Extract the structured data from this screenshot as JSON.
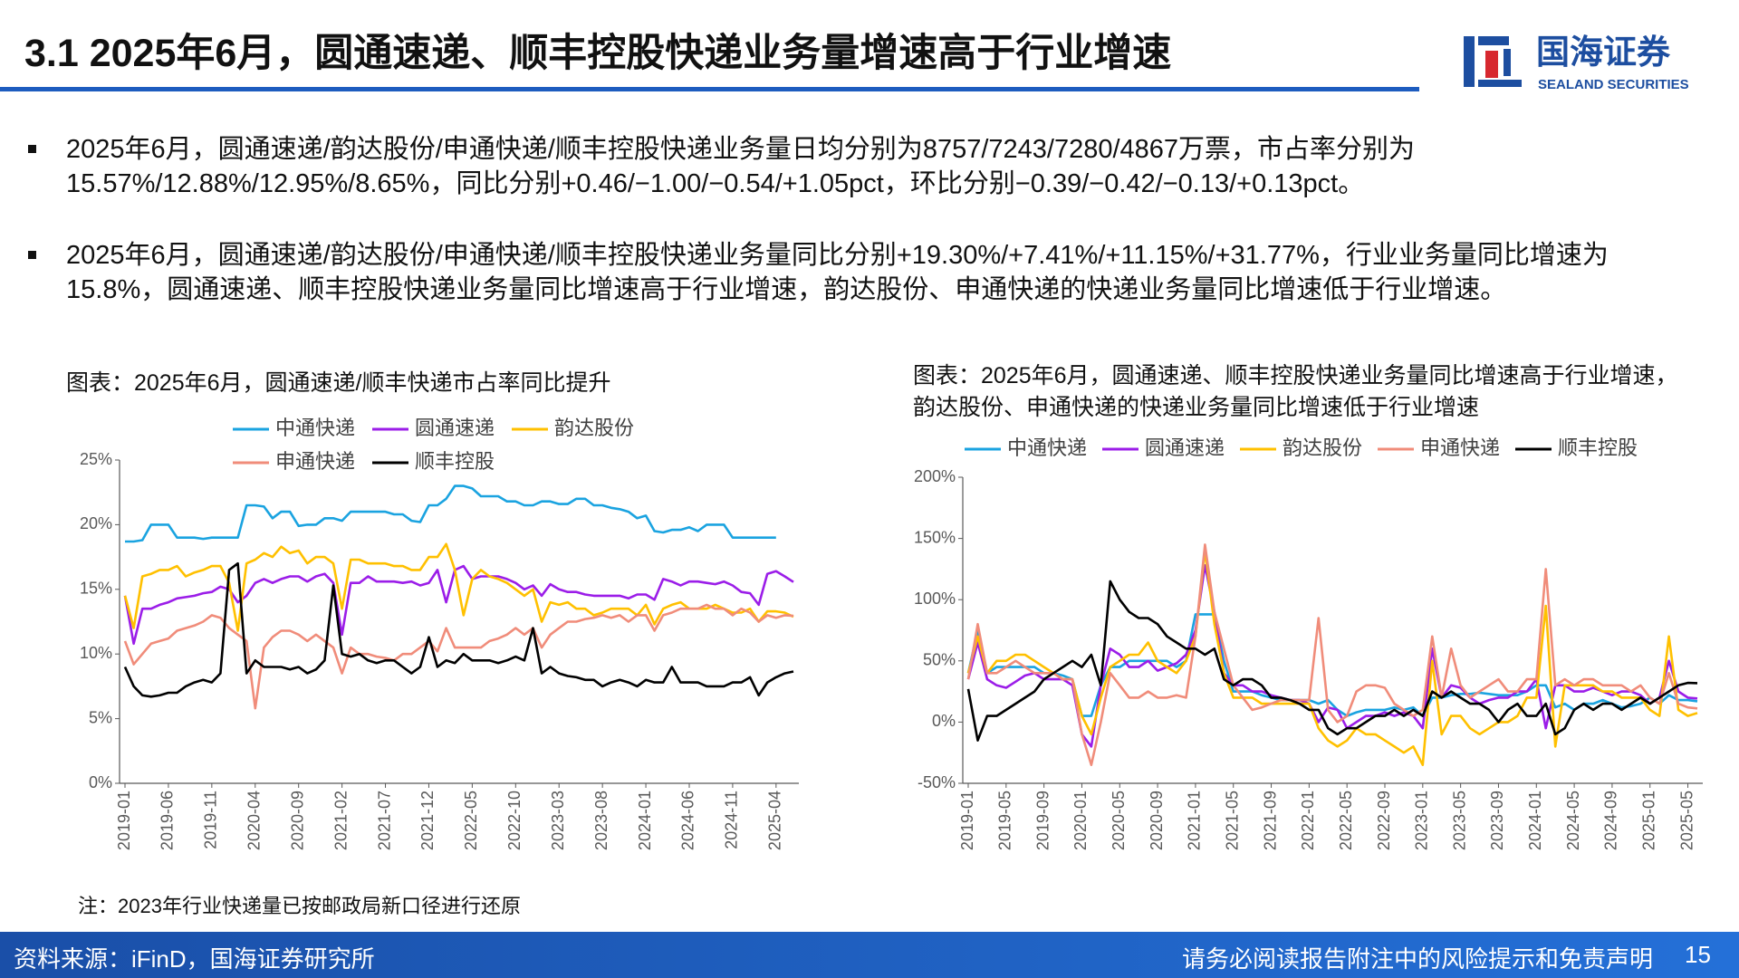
{
  "header": {
    "title": "3.1 2025年6月，圆通速递、顺丰控股快递业务量增速高于行业增速",
    "logo_cn": "国海证券",
    "logo_en": "SEALAND SECURITIES"
  },
  "bullets": [
    "2025年6月，圆通速递/韵达股份/申通快递/顺丰控股快递业务量日均分别为8757/7243/7280/4867万票，市占率分别为15.57%/12.88%/12.95%/8.65%，同比分别+0.46/−1.00/−0.54/+1.05pct，环比分别−0.39/−0.42/−0.13/+0.13pct。",
    "2025年6月，圆通速递/韵达股份/申通快递/顺丰控股快递业务量同比分别+19.30%/+7.41%/+11.15%/+31.77%，行业业务量同比增速为15.8%，圆通速递、顺丰控股快递业务量同比增速高于行业增速，韵达股份、申通快递的快递业务量同比增速低于行业增速。"
  ],
  "chart_data": [
    {
      "type": "line",
      "title": "图表：2025年6月，圆通速递/顺丰快递市占率同比提升",
      "note": "注：2023年行业快递量已按邮政局新口径进行还原",
      "categories": [
        "2019-01",
        null,
        null,
        null,
        null,
        "2019-06",
        null,
        null,
        null,
        null,
        "2019-11",
        null,
        null,
        null,
        null,
        "2020-04",
        null,
        null,
        null,
        null,
        "2020-09",
        null,
        null,
        null,
        null,
        "2021-02",
        null,
        null,
        null,
        null,
        "2021-07",
        null,
        null,
        null,
        null,
        "2021-12",
        null,
        null,
        null,
        null,
        "2022-05",
        null,
        null,
        null,
        null,
        "2022-10",
        null,
        null,
        null,
        null,
        "2023-03",
        null,
        null,
        null,
        null,
        "2023-08",
        null,
        null,
        null,
        null,
        "2024-01",
        null,
        null,
        null,
        null,
        "2024-06",
        null,
        null,
        null,
        null,
        "2024-11",
        null,
        null,
        null,
        null,
        "2025-04",
        null,
        null
      ],
      "ylim": [
        0,
        25
      ],
      "yticks": [
        {
          "value": 0,
          "label": "0%"
        },
        {
          "value": 5,
          "label": "5%"
        },
        {
          "value": 10,
          "label": "10%"
        },
        {
          "value": 15,
          "label": "15%"
        },
        {
          "value": 20,
          "label": "20%"
        },
        {
          "value": 25,
          "label": "25%"
        }
      ],
      "series": [
        {
          "name": "中通快递",
          "color": "#1aa3e0",
          "values": [
            18.7,
            18.7,
            18.8,
            20,
            20,
            20,
            19,
            19,
            19,
            18.9,
            19,
            19,
            19,
            19,
            21.5,
            21.5,
            21.4,
            20.5,
            21,
            21,
            19.9,
            20,
            20,
            20.5,
            20.5,
            20.3,
            21,
            21,
            21,
            21,
            21,
            20.8,
            20.8,
            20.3,
            20.2,
            21.5,
            21.5,
            22,
            23,
            23,
            22.8,
            22.2,
            22.2,
            22.2,
            21.8,
            21.8,
            21.5,
            21.5,
            21.8,
            21.8,
            21.6,
            21.6,
            22,
            22,
            21.5,
            21.5,
            21.3,
            21.2,
            21,
            20.5,
            20.7,
            19.5,
            19.4,
            19.6,
            19.6,
            19.8,
            19.5,
            20,
            20,
            20,
            19,
            19,
            19,
            19,
            19,
            19,
            null,
            null
          ]
        },
        {
          "name": "圆通速递",
          "color": "#9b1de8",
          "values": [
            14.5,
            10.8,
            13.5,
            13.5,
            13.8,
            14,
            14.3,
            14.4,
            14.5,
            14.7,
            14.8,
            15.2,
            15,
            14,
            14.5,
            15.5,
            15.8,
            15.5,
            15.8,
            16,
            16,
            15.6,
            16,
            16.2,
            15.5,
            11.5,
            15.5,
            15.5,
            16,
            15.6,
            15.6,
            15.6,
            15.5,
            15.6,
            15.3,
            15.5,
            16.5,
            14,
            16.5,
            16.8,
            15.8,
            16,
            16,
            16,
            15.8,
            15.5,
            15,
            15.3,
            14.5,
            15.4,
            15,
            14.8,
            14.8,
            14.6,
            14.5,
            14.5,
            14.5,
            14.5,
            14.3,
            14.6,
            14.6,
            14.2,
            15.8,
            15.6,
            15.3,
            15.6,
            15.6,
            15.5,
            15.4,
            15.6,
            15.3,
            14.8,
            14.7,
            13.8,
            16.2,
            16.4,
            16,
            15.57
          ]
        },
        {
          "name": "韵达股份",
          "color": "#ffc000",
          "values": [
            14.5,
            12,
            16,
            16.2,
            16.5,
            16.5,
            16.8,
            16,
            16.3,
            16.5,
            16.8,
            16.8,
            15.5,
            11.8,
            17,
            17.3,
            17.8,
            17.5,
            18.3,
            17.8,
            18,
            17,
            17.5,
            17.5,
            17,
            13.5,
            17.3,
            17.3,
            17,
            17,
            17,
            16.8,
            16.8,
            16.5,
            16.5,
            17.5,
            17.5,
            18.5,
            16.5,
            13,
            15.8,
            16.5,
            16,
            15.8,
            15.5,
            15,
            14.5,
            15,
            12.5,
            14,
            13.8,
            14,
            13.5,
            13.5,
            13,
            13.2,
            13.5,
            13.5,
            13.5,
            13,
            13.8,
            12.3,
            13.5,
            13.8,
            14,
            13.5,
            13.5,
            13.5,
            13.8,
            13.5,
            13.2,
            13.2,
            13.5,
            12.5,
            13.3,
            13.3,
            13.2,
            12.88
          ]
        },
        {
          "name": "申通快递",
          "color": "#f08c7a",
          "values": [
            11,
            9.2,
            10,
            10.8,
            11,
            11.2,
            11.8,
            12,
            12.2,
            12.5,
            13,
            12.8,
            12,
            11.5,
            11,
            5.8,
            10.5,
            11.3,
            11.8,
            11.8,
            11.5,
            11,
            11.5,
            11,
            10.5,
            8.5,
            10.5,
            10,
            10,
            9.8,
            9.7,
            9.5,
            10,
            10,
            10.5,
            11,
            10.2,
            12,
            10.5,
            10.5,
            10.5,
            10.5,
            11,
            11.2,
            11.5,
            12,
            11.5,
            12,
            10.5,
            11.5,
            12,
            12.5,
            12.5,
            12.7,
            12.8,
            13,
            12.8,
            13,
            12.5,
            13,
            13,
            11.8,
            13,
            13.2,
            13.5,
            13.5,
            13.5,
            13.8,
            13.5,
            13.5,
            13,
            13.5,
            13.2,
            12.5,
            13,
            12.8,
            13,
            12.95
          ]
        },
        {
          "name": "顺丰控股",
          "color": "#000000",
          "values": [
            9,
            7.5,
            6.8,
            6.7,
            6.8,
            7,
            7,
            7.5,
            7.8,
            8,
            7.8,
            8.5,
            16.5,
            17,
            8.5,
            9.5,
            9,
            9,
            9,
            8.8,
            9,
            8.5,
            8.8,
            9.5,
            15.3,
            10,
            9.8,
            10,
            9.5,
            9.3,
            9.5,
            9.5,
            9,
            8.5,
            9,
            11.3,
            9,
            9.5,
            9.3,
            10,
            9.5,
            9.5,
            9.5,
            9.3,
            9.5,
            9.8,
            9.5,
            12,
            8.5,
            9,
            8.5,
            8.3,
            8.2,
            8,
            8,
            7.5,
            7.8,
            8,
            7.8,
            7.5,
            8,
            7.8,
            7.8,
            9,
            7.8,
            7.8,
            7.8,
            7.5,
            7.5,
            7.5,
            7.8,
            7.8,
            8.2,
            6.8,
            7.8,
            8.2,
            8.5,
            8.65
          ]
        }
      ]
    },
    {
      "type": "line",
      "title": "图表：2025年6月，圆通速递、顺丰控股快递业务量同比增速高于行业增速，韵达股份、申通快递的快递业务量同比增速低于行业增速",
      "categories": [
        "2019-01",
        null,
        null,
        null,
        "2019-05",
        null,
        null,
        null,
        "2019-09",
        null,
        null,
        null,
        "2020-01",
        null,
        null,
        null,
        "2020-05",
        null,
        null,
        null,
        "2020-09",
        null,
        null,
        null,
        "2021-01",
        null,
        null,
        null,
        "2021-05",
        null,
        null,
        null,
        "2021-09",
        null,
        null,
        null,
        "2022-01",
        null,
        null,
        null,
        "2022-05",
        null,
        null,
        null,
        "2022-09",
        null,
        null,
        null,
        "2023-01",
        null,
        null,
        null,
        "2023-05",
        null,
        null,
        null,
        "2023-09",
        null,
        null,
        null,
        "2024-01",
        null,
        null,
        null,
        "2024-05",
        null,
        null,
        null,
        "2024-09",
        null,
        null,
        null,
        "2025-01",
        null,
        null,
        null,
        "2025-05",
        null
      ],
      "ylim": [
        -50,
        200
      ],
      "yticks": [
        {
          "value": -50,
          "label": "-50%"
        },
        {
          "value": 0,
          "label": "0%"
        },
        {
          "value": 50,
          "label": "50%"
        },
        {
          "value": 100,
          "label": "100%"
        },
        {
          "value": 150,
          "label": "150%"
        },
        {
          "value": 200,
          "label": "200%"
        }
      ],
      "series": [
        {
          "name": "中通快递",
          "color": "#1aa3e0",
          "values": [
            40,
            75,
            40,
            45,
            45,
            45,
            45,
            45,
            40,
            40,
            38,
            35,
            5,
            5,
            30,
            45,
            45,
            50,
            50,
            50,
            50,
            50,
            45,
            50,
            88,
            88,
            88,
            50,
            25,
            25,
            25,
            22,
            20,
            18,
            18,
            18,
            18,
            15,
            18,
            10,
            5,
            8,
            10,
            10,
            10,
            12,
            10,
            12,
            5,
            20,
            20,
            22,
            23,
            23,
            24,
            23,
            22,
            22,
            22,
            25,
            30,
            30,
            12,
            15,
            10,
            15,
            15,
            18,
            15,
            12,
            13,
            15,
            20,
            15,
            22,
            18,
            18,
            17
          ]
        },
        {
          "name": "圆通速递",
          "color": "#9b1de8",
          "values": [
            35,
            65,
            35,
            30,
            28,
            33,
            38,
            40,
            35,
            35,
            35,
            30,
            -10,
            -20,
            30,
            60,
            55,
            45,
            45,
            50,
            42,
            45,
            48,
            55,
            75,
            128,
            90,
            40,
            30,
            30,
            25,
            25,
            22,
            20,
            18,
            18,
            15,
            0,
            12,
            10,
            -5,
            0,
            5,
            5,
            8,
            5,
            8,
            5,
            -5,
            60,
            20,
            30,
            28,
            20,
            15,
            18,
            20,
            20,
            25,
            25,
            35,
            -5,
            30,
            30,
            25,
            25,
            28,
            25,
            22,
            25,
            25,
            22,
            15,
            20,
            50,
            25,
            20,
            19.3
          ]
        },
        {
          "name": "韵达股份",
          "color": "#ffc000",
          "values": [
            40,
            70,
            40,
            50,
            50,
            55,
            55,
            50,
            45,
            40,
            35,
            35,
            5,
            -10,
            20,
            45,
            50,
            55,
            55,
            65,
            50,
            45,
            40,
            50,
            70,
            140,
            80,
            40,
            20,
            20,
            20,
            15,
            15,
            15,
            15,
            15,
            15,
            -5,
            -15,
            -20,
            -15,
            -5,
            -10,
            -10,
            -15,
            -20,
            -25,
            -20,
            -35,
            50,
            -10,
            5,
            5,
            -5,
            -10,
            -5,
            0,
            0,
            5,
            20,
            20,
            95,
            -20,
            30,
            30,
            30,
            30,
            25,
            25,
            20,
            20,
            20,
            10,
            5,
            70,
            10,
            5,
            7.41
          ]
        },
        {
          "name": "申通快递",
          "color": "#f08c7a",
          "values": [
            35,
            80,
            40,
            40,
            45,
            50,
            45,
            40,
            40,
            40,
            35,
            35,
            -10,
            -35,
            0,
            40,
            30,
            20,
            20,
            25,
            20,
            20,
            22,
            20,
            70,
            145,
            90,
            60,
            30,
            20,
            10,
            12,
            15,
            18,
            18,
            18,
            18,
            85,
            10,
            0,
            5,
            25,
            30,
            30,
            28,
            15,
            10,
            5,
            10,
            70,
            20,
            60,
            30,
            20,
            25,
            30,
            35,
            25,
            25,
            35,
            35,
            125,
            30,
            35,
            30,
            35,
            35,
            30,
            30,
            30,
            25,
            30,
            20,
            15,
            40,
            15,
            12,
            11.15
          ]
        },
        {
          "name": "顺丰控股",
          "color": "#000000",
          "values": [
            27,
            -15,
            5,
            5,
            10,
            15,
            20,
            25,
            35,
            40,
            45,
            50,
            45,
            55,
            30,
            115,
            100,
            90,
            85,
            85,
            80,
            70,
            65,
            60,
            60,
            55,
            60,
            35,
            30,
            35,
            35,
            30,
            20,
            20,
            18,
            15,
            10,
            10,
            -5,
            -10,
            -5,
            -5,
            0,
            5,
            5,
            10,
            5,
            10,
            5,
            25,
            20,
            25,
            20,
            15,
            15,
            10,
            0,
            10,
            15,
            5,
            5,
            15,
            -10,
            -5,
            10,
            15,
            10,
            15,
            15,
            10,
            15,
            20,
            15,
            20,
            25,
            30,
            32,
            31.77
          ]
        }
      ]
    }
  ],
  "footer": {
    "source": "资料来源：iFinD，国海证券研究所",
    "disclaimer": "请务必阅读报告附注中的风险提示和免责声明",
    "page": "15"
  }
}
